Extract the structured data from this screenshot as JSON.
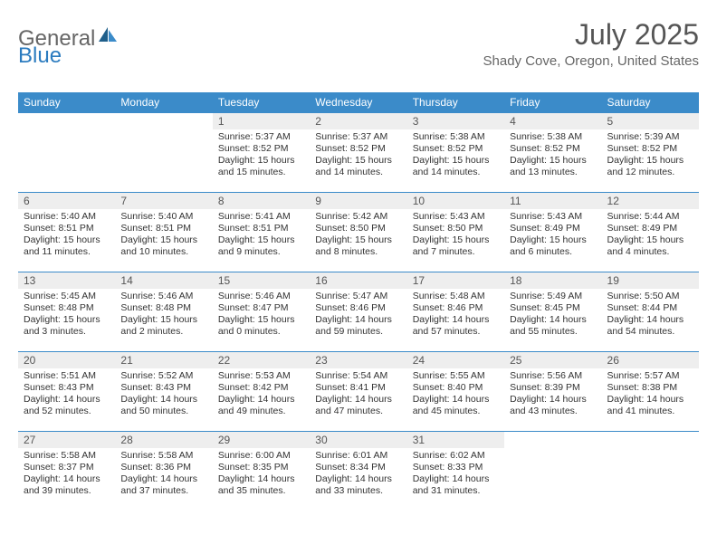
{
  "brand": {
    "part1": "General",
    "part2": "Blue"
  },
  "title": "July 2025",
  "location": "Shady Cove, Oregon, United States",
  "calendar": {
    "header_bg": "#3b8bc9",
    "header_fg": "#ffffff",
    "row_border": "#3b8bc9",
    "daynum_bg": "#eeeeee",
    "columns": [
      "Sunday",
      "Monday",
      "Tuesday",
      "Wednesday",
      "Thursday",
      "Friday",
      "Saturday"
    ],
    "weeks": [
      [
        null,
        null,
        {
          "n": "1",
          "sr": "5:37 AM",
          "ss": "8:52 PM",
          "dl": "15 hours and 15 minutes."
        },
        {
          "n": "2",
          "sr": "5:37 AM",
          "ss": "8:52 PM",
          "dl": "15 hours and 14 minutes."
        },
        {
          "n": "3",
          "sr": "5:38 AM",
          "ss": "8:52 PM",
          "dl": "15 hours and 14 minutes."
        },
        {
          "n": "4",
          "sr": "5:38 AM",
          "ss": "8:52 PM",
          "dl": "15 hours and 13 minutes."
        },
        {
          "n": "5",
          "sr": "5:39 AM",
          "ss": "8:52 PM",
          "dl": "15 hours and 12 minutes."
        }
      ],
      [
        {
          "n": "6",
          "sr": "5:40 AM",
          "ss": "8:51 PM",
          "dl": "15 hours and 11 minutes."
        },
        {
          "n": "7",
          "sr": "5:40 AM",
          "ss": "8:51 PM",
          "dl": "15 hours and 10 minutes."
        },
        {
          "n": "8",
          "sr": "5:41 AM",
          "ss": "8:51 PM",
          "dl": "15 hours and 9 minutes."
        },
        {
          "n": "9",
          "sr": "5:42 AM",
          "ss": "8:50 PM",
          "dl": "15 hours and 8 minutes."
        },
        {
          "n": "10",
          "sr": "5:43 AM",
          "ss": "8:50 PM",
          "dl": "15 hours and 7 minutes."
        },
        {
          "n": "11",
          "sr": "5:43 AM",
          "ss": "8:49 PM",
          "dl": "15 hours and 6 minutes."
        },
        {
          "n": "12",
          "sr": "5:44 AM",
          "ss": "8:49 PM",
          "dl": "15 hours and 4 minutes."
        }
      ],
      [
        {
          "n": "13",
          "sr": "5:45 AM",
          "ss": "8:48 PM",
          "dl": "15 hours and 3 minutes."
        },
        {
          "n": "14",
          "sr": "5:46 AM",
          "ss": "8:48 PM",
          "dl": "15 hours and 2 minutes."
        },
        {
          "n": "15",
          "sr": "5:46 AM",
          "ss": "8:47 PM",
          "dl": "15 hours and 0 minutes."
        },
        {
          "n": "16",
          "sr": "5:47 AM",
          "ss": "8:46 PM",
          "dl": "14 hours and 59 minutes."
        },
        {
          "n": "17",
          "sr": "5:48 AM",
          "ss": "8:46 PM",
          "dl": "14 hours and 57 minutes."
        },
        {
          "n": "18",
          "sr": "5:49 AM",
          "ss": "8:45 PM",
          "dl": "14 hours and 55 minutes."
        },
        {
          "n": "19",
          "sr": "5:50 AM",
          "ss": "8:44 PM",
          "dl": "14 hours and 54 minutes."
        }
      ],
      [
        {
          "n": "20",
          "sr": "5:51 AM",
          "ss": "8:43 PM",
          "dl": "14 hours and 52 minutes."
        },
        {
          "n": "21",
          "sr": "5:52 AM",
          "ss": "8:43 PM",
          "dl": "14 hours and 50 minutes."
        },
        {
          "n": "22",
          "sr": "5:53 AM",
          "ss": "8:42 PM",
          "dl": "14 hours and 49 minutes."
        },
        {
          "n": "23",
          "sr": "5:54 AM",
          "ss": "8:41 PM",
          "dl": "14 hours and 47 minutes."
        },
        {
          "n": "24",
          "sr": "5:55 AM",
          "ss": "8:40 PM",
          "dl": "14 hours and 45 minutes."
        },
        {
          "n": "25",
          "sr": "5:56 AM",
          "ss": "8:39 PM",
          "dl": "14 hours and 43 minutes."
        },
        {
          "n": "26",
          "sr": "5:57 AM",
          "ss": "8:38 PM",
          "dl": "14 hours and 41 minutes."
        }
      ],
      [
        {
          "n": "27",
          "sr": "5:58 AM",
          "ss": "8:37 PM",
          "dl": "14 hours and 39 minutes."
        },
        {
          "n": "28",
          "sr": "5:58 AM",
          "ss": "8:36 PM",
          "dl": "14 hours and 37 minutes."
        },
        {
          "n": "29",
          "sr": "6:00 AM",
          "ss": "8:35 PM",
          "dl": "14 hours and 35 minutes."
        },
        {
          "n": "30",
          "sr": "6:01 AM",
          "ss": "8:34 PM",
          "dl": "14 hours and 33 minutes."
        },
        {
          "n": "31",
          "sr": "6:02 AM",
          "ss": "8:33 PM",
          "dl": "14 hours and 31 minutes."
        },
        null,
        null
      ]
    ]
  }
}
